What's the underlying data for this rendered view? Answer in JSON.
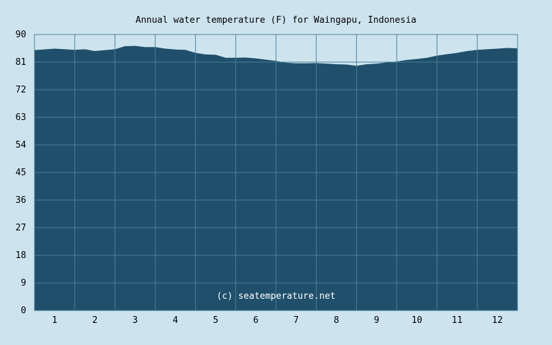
{
  "chart_data": {
    "type": "area",
    "title": "Annual water temperature (F) for Waingapu, Indonesia",
    "xlabel": "",
    "ylabel": "",
    "watermark": "(c) seatemperature.net",
    "ylim": [
      0,
      90
    ],
    "y_ticks": [
      0,
      9,
      18,
      27,
      36,
      45,
      54,
      63,
      72,
      81,
      90
    ],
    "x_ticks": [
      "1",
      "2",
      "3",
      "4",
      "5",
      "6",
      "7",
      "8",
      "9",
      "10",
      "11",
      "12"
    ],
    "x_range": [
      0,
      12
    ],
    "grid": true,
    "fill_color": "#1f4f6b",
    "background_color": "#cde4ef",
    "grid_color": "#4d7f99",
    "series": [
      {
        "x": [
          0,
          0.5,
          1.0,
          1.25,
          1.5,
          1.75,
          2.0,
          2.25,
          2.5,
          2.75,
          3.0,
          3.25,
          3.5,
          3.75,
          4.0,
          4.25,
          4.5,
          4.75,
          5.0,
          5.25,
          5.5,
          5.75,
          6.0,
          6.25,
          6.5,
          6.75,
          7.0,
          7.25,
          7.5,
          7.75,
          8.0,
          8.25,
          8.5,
          8.75,
          9.0,
          9.25,
          9.5,
          9.75,
          10.0,
          10.25,
          10.5,
          10.75,
          11.0,
          11.25,
          11.5,
          11.75,
          12.0
        ],
        "values": [
          84.9,
          85.4,
          85.0,
          85.2,
          84.6,
          84.9,
          85.2,
          86.2,
          86.3,
          85.9,
          85.9,
          85.4,
          85.1,
          85.0,
          84.0,
          83.5,
          83.4,
          82.4,
          82.4,
          82.5,
          82.2,
          81.8,
          81.4,
          80.8,
          80.6,
          80.6,
          80.7,
          80.5,
          80.3,
          80.2,
          79.8,
          80.3,
          80.5,
          80.9,
          81.2,
          81.7,
          82.0,
          82.4,
          83.1,
          83.6,
          84.0,
          84.6,
          85.0,
          85.2,
          85.4,
          85.6,
          85.5
        ]
      }
    ]
  }
}
